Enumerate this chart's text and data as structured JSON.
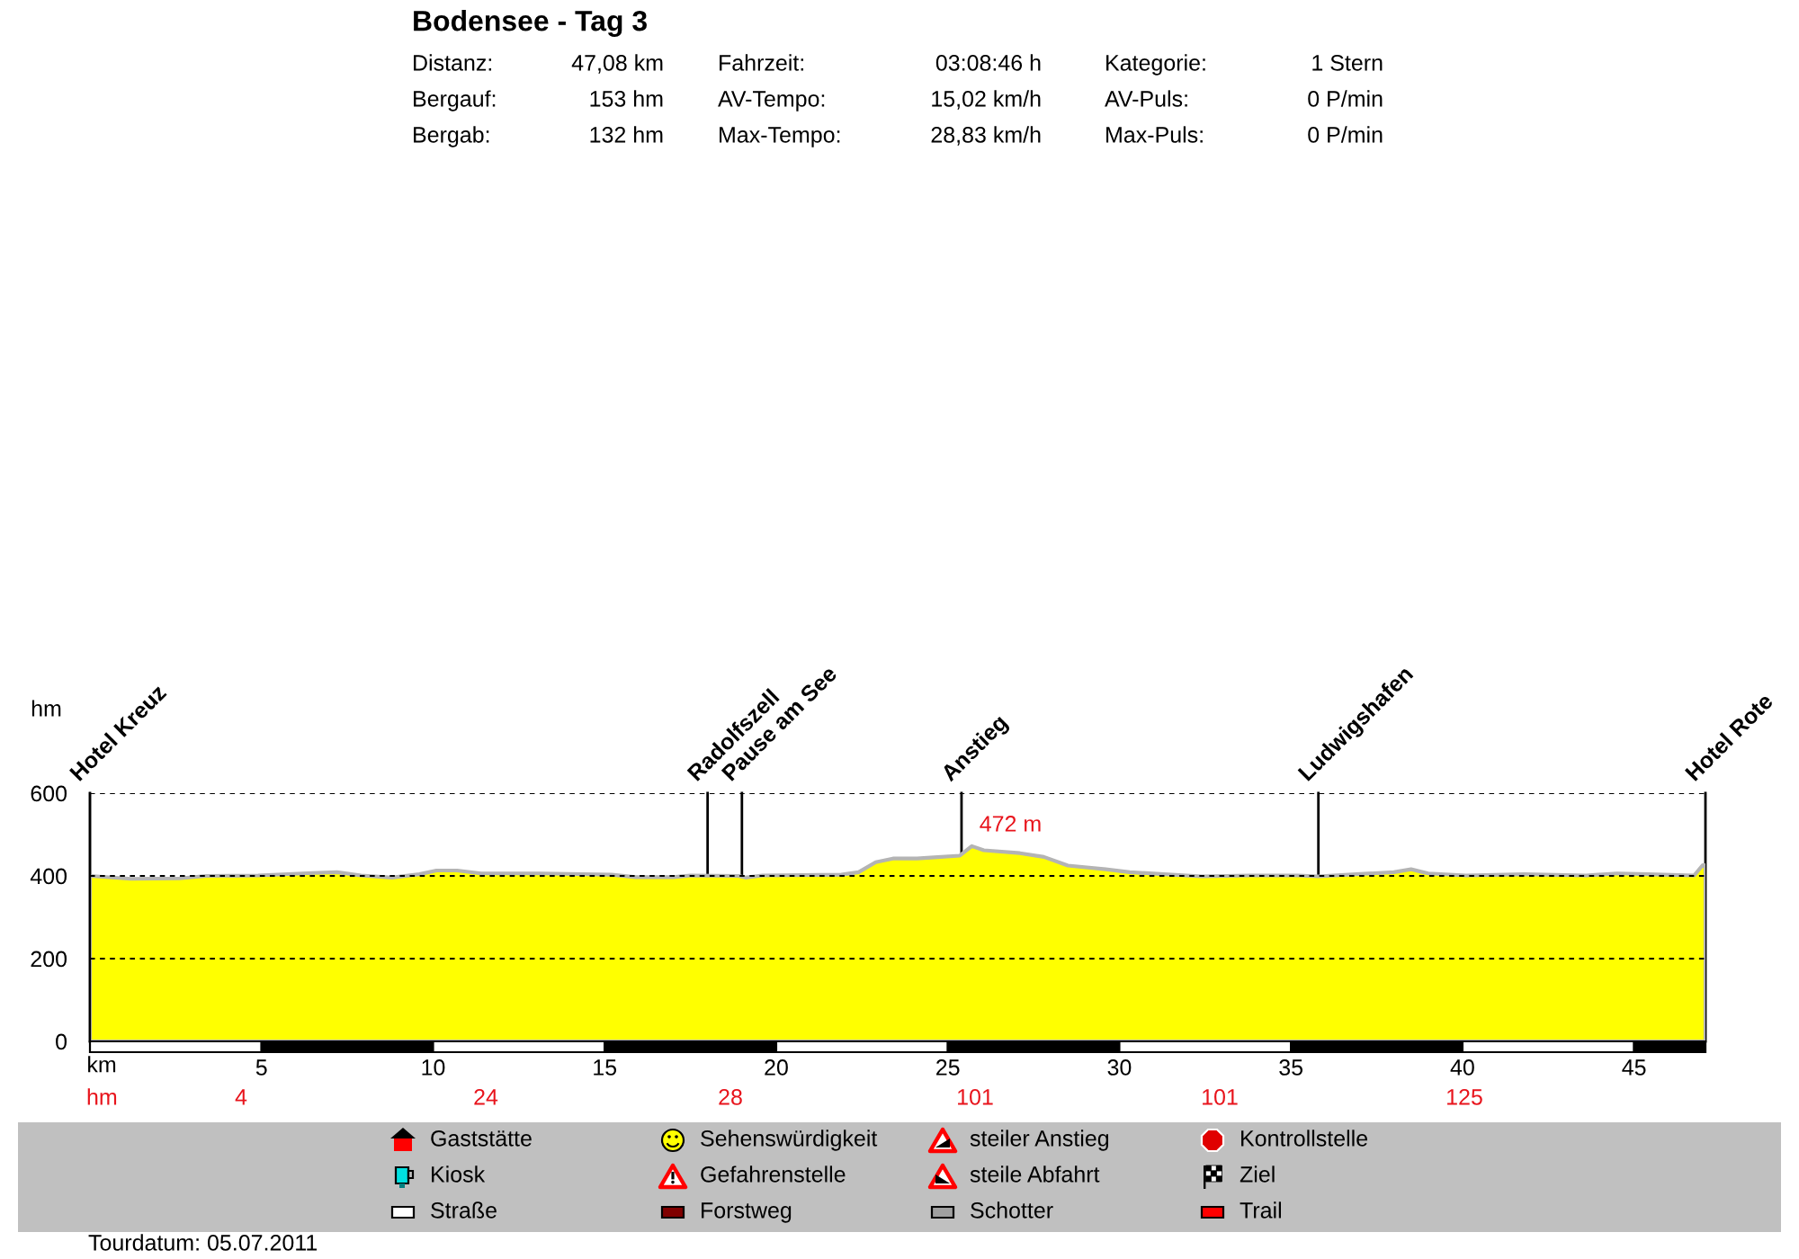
{
  "chart_data": [
    {
      "type": "other",
      "title": "Bodensee - Tag 3",
      "annotations": [
        "Distanz:",
        "47,08 km",
        "Fahrzeit:",
        "03:08:46 h",
        "Kategorie:",
        "1 Stern",
        "Bergauf:",
        "153 hm",
        "AV-Tempo:",
        "15,02 km/h",
        "AV-Puls:",
        "0 P/min",
        "Bergab:",
        "132 hm",
        "Max-Tempo:",
        "28,83 km/h",
        "Max-Puls:",
        "0 P/min"
      ]
    },
    {
      "type": "area",
      "xlabel": "km",
      "ylabel": "hm",
      "x": [
        0,
        1.2,
        2.6,
        3.4,
        4.9,
        6.5,
        7.2,
        7.9,
        8.8,
        9.6,
        10.1,
        10.7,
        11.4,
        13.1,
        15.2,
        15.9,
        17.0,
        17.5,
        18.9,
        19.1,
        19.6,
        21.9,
        22.4,
        22.9,
        23.4,
        24.1,
        24.6,
        25.35,
        25.7,
        26.05,
        27.1,
        27.8,
        28.5,
        29.6,
        30.3,
        31.3,
        32.4,
        33.8,
        35.2,
        35.8,
        36.9,
        38.0,
        38.5,
        39.0,
        40.1,
        41.8,
        43.6,
        44.5,
        45.4,
        46.75,
        47.0,
        47.08
      ],
      "series": [
        {
          "color": "#ffff00",
          "values": [
            400,
            393,
            394,
            400,
            401,
            407,
            409,
            401,
            396,
            404,
            413,
            413,
            406,
            406,
            403,
            397,
            397,
            401,
            400,
            396,
            401,
            403,
            409,
            433,
            442,
            442,
            445,
            449,
            472,
            462,
            455,
            446,
            425,
            416,
            409,
            404,
            399,
            401,
            401,
            399,
            404,
            409,
            416,
            406,
            401,
            404,
            401,
            406,
            404,
            401,
            426,
            426
          ]
        }
      ],
      "xlim": [
        0,
        47.08
      ],
      "xticks": [
        5,
        10,
        15,
        20,
        25,
        30,
        35,
        40,
        45
      ],
      "ylim": [
        0,
        600
      ],
      "yticks": [
        0,
        200,
        400,
        600
      ],
      "grid": "y",
      "ref_lines": [
        {
          "axis": "x",
          "value": 0,
          "label": "Hotel Kreuz"
        },
        {
          "axis": "x",
          "value": 18.0,
          "label": "Radolfszell"
        },
        {
          "axis": "x",
          "value": 19.0,
          "label": "Pause am See"
        },
        {
          "axis": "x",
          "value": 25.4,
          "label": "Anstieg"
        },
        {
          "axis": "x",
          "value": 35.8,
          "label": "Ludwigshafen"
        },
        {
          "axis": "x",
          "value": 47.08,
          "label": "Hotel Rote"
        }
      ],
      "annotations": [
        {
          "text": "472 m",
          "x": 25.7,
          "y": 472
        },
        "Tourdatum: 05.07.2011"
      ]
    },
    {
      "type": "other",
      "annotations": [
        "hm",
        "4",
        "24",
        "28",
        "101",
        "101",
        "125"
      ]
    },
    {
      "type": "other",
      "annotations": [
        "Gaststätte",
        "Sehenswürdigkeit",
        "steiler Anstieg",
        "Kontrollstelle",
        "Kiosk",
        "Gefahrenstelle",
        "steile Abfahrt",
        "Ziel",
        "Straße",
        "Forstweg",
        "Schotter",
        "Trail"
      ]
    }
  ]
}
